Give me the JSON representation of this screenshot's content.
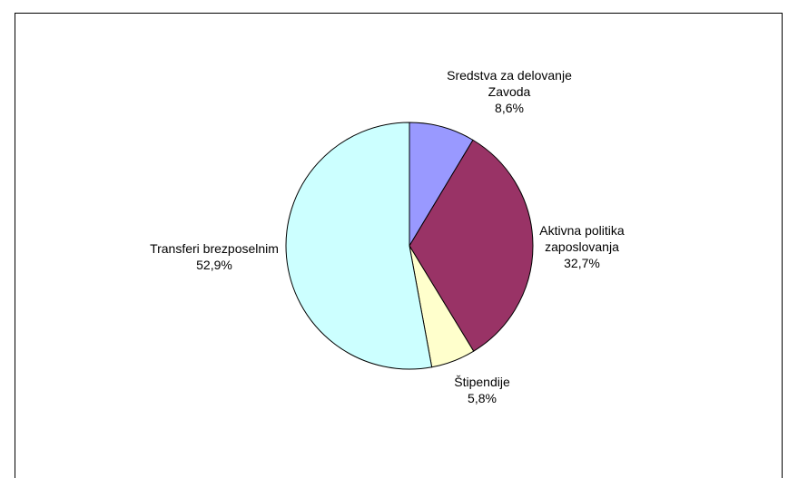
{
  "chart_data": {
    "type": "pie",
    "slices": [
      {
        "label": "Sredstva za delovanje Zavoda",
        "label_lines": [
          "Sredstva za delovanje",
          "Zavoda"
        ],
        "value": 8.6,
        "value_text": "8,6%",
        "color": "#9999ff"
      },
      {
        "label": "Aktivna politika zaposlovanja",
        "label_lines": [
          "Aktivna politika",
          "zaposlovanja"
        ],
        "value": 32.7,
        "value_text": "32,7%",
        "color": "#993366"
      },
      {
        "label": "Štipendije",
        "label_lines": [
          "Štipendije"
        ],
        "value": 5.8,
        "value_text": "5,8%",
        "color": "#ffffcc"
      },
      {
        "label": "Transferi brezposelnim",
        "label_lines": [
          "Transferi brezposelnim"
        ],
        "value": 52.9,
        "value_text": "52,9%",
        "color": "#ccffff"
      }
    ],
    "start_angle": "12 o'clock",
    "direction": "clockwise",
    "legend": "none",
    "edge_color": "#000000"
  }
}
